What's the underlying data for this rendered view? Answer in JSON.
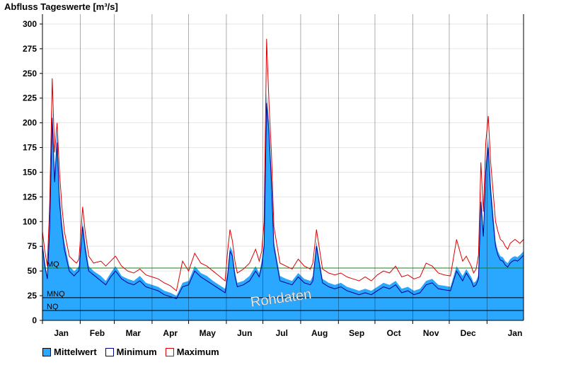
{
  "chart_data": {
    "type": "area",
    "title": "Abfluss Tageswerte [m³/s]",
    "ylim": [
      0,
      310
    ],
    "yticks": [
      0,
      25,
      50,
      75,
      100,
      125,
      150,
      175,
      200,
      225,
      250,
      275,
      300
    ],
    "xlim": [
      0,
      395
    ],
    "month_labels": [
      "Jan",
      "Feb",
      "Mar",
      "Apr",
      "May",
      "Jun",
      "Jul",
      "Aug",
      "Sep",
      "Oct",
      "Nov",
      "Dec",
      "Jan"
    ],
    "month_starts": [
      0,
      31,
      59,
      90,
      120,
      151,
      181,
      212,
      243,
      273,
      304,
      334,
      365
    ],
    "reference_lines": [
      {
        "label": "MQ",
        "value": 53
      },
      {
        "label": "MNQ",
        "value": 23
      },
      {
        "label": "NQ",
        "value": 10
      }
    ],
    "watermark": "Rohdaten",
    "x_key_days": [
      0,
      2,
      4,
      6,
      8,
      10,
      12,
      14,
      16,
      18,
      22,
      26,
      28,
      30,
      33,
      35,
      38,
      42,
      48,
      52,
      56,
      60,
      65,
      70,
      75,
      80,
      85,
      90,
      95,
      100,
      105,
      110,
      115,
      120,
      125,
      130,
      135,
      140,
      145,
      150,
      152,
      154,
      156,
      158,
      160,
      165,
      170,
      175,
      178,
      180,
      182,
      184,
      186,
      188,
      190,
      195,
      200,
      205,
      210,
      215,
      220,
      222,
      225,
      230,
      235,
      240,
      245,
      250,
      255,
      260,
      265,
      270,
      275,
      280,
      285,
      290,
      295,
      300,
      305,
      310,
      315,
      320,
      325,
      330,
      335,
      340,
      345,
      348,
      350,
      352,
      354,
      356,
      358,
      360,
      362,
      364,
      366,
      368,
      370,
      372,
      374,
      376,
      378,
      380,
      382,
      384,
      386,
      388,
      390,
      392,
      395
    ],
    "series": [
      {
        "name": "Mittelwert",
        "color": "#2aa7ff",
        "values": [
          80,
          60,
          45,
          100,
          215,
          150,
          190,
          130,
          100,
          80,
          55,
          50,
          52,
          55,
          100,
          80,
          55,
          50,
          45,
          40,
          48,
          55,
          45,
          42,
          40,
          45,
          38,
          36,
          34,
          30,
          28,
          25,
          38,
          40,
          55,
          48,
          45,
          40,
          36,
          32,
          50,
          75,
          70,
          50,
          38,
          40,
          45,
          55,
          48,
          60,
          80,
          230,
          200,
          150,
          80,
          45,
          42,
          40,
          48,
          42,
          40,
          45,
          80,
          42,
          38,
          36,
          38,
          34,
          32,
          30,
          32,
          30,
          34,
          38,
          36,
          40,
          32,
          34,
          30,
          32,
          40,
          42,
          36,
          35,
          34,
          55,
          45,
          52,
          48,
          44,
          38,
          40,
          46,
          130,
          90,
          160,
          185,
          140,
          110,
          80,
          70,
          65,
          64,
          60,
          58,
          62,
          64,
          65,
          64,
          66,
          70
        ]
      },
      {
        "name": "Minimum",
        "color": "#00008b",
        "values": [
          75,
          55,
          42,
          95,
          205,
          140,
          180,
          120,
          92,
          72,
          50,
          45,
          48,
          50,
          95,
          72,
          50,
          46,
          40,
          36,
          44,
          50,
          42,
          38,
          36,
          40,
          34,
          32,
          30,
          26,
          24,
          22,
          34,
          36,
          50,
          44,
          40,
          36,
          32,
          28,
          45,
          70,
          65,
          45,
          34,
          36,
          40,
          50,
          44,
          55,
          75,
          220,
          190,
          140,
          75,
          40,
          38,
          36,
          44,
          38,
          36,
          40,
          75,
          38,
          34,
          32,
          34,
          30,
          28,
          26,
          28,
          26,
          30,
          34,
          32,
          36,
          28,
          30,
          26,
          28,
          36,
          38,
          32,
          31,
          30,
          50,
          40,
          48,
          44,
          40,
          34,
          36,
          42,
          120,
          85,
          150,
          175,
          130,
          100,
          75,
          66,
          61,
          60,
          56,
          54,
          58,
          60,
          61,
          60,
          62,
          66
        ]
      },
      {
        "name": "Maximum",
        "color": "#dd0000",
        "values": [
          90,
          70,
          55,
          120,
          245,
          170,
          200,
          150,
          115,
          90,
          65,
          60,
          58,
          62,
          115,
          90,
          65,
          58,
          60,
          55,
          60,
          65,
          55,
          50,
          48,
          52,
          46,
          44,
          42,
          38,
          35,
          30,
          60,
          50,
          68,
          58,
          55,
          50,
          45,
          40,
          70,
          92,
          80,
          60,
          48,
          52,
          58,
          72,
          60,
          70,
          100,
          285,
          220,
          170,
          95,
          58,
          55,
          52,
          62,
          55,
          52,
          58,
          92,
          52,
          48,
          46,
          48,
          44,
          42,
          40,
          44,
          40,
          46,
          50,
          48,
          55,
          44,
          46,
          42,
          44,
          58,
          55,
          48,
          46,
          45,
          82,
          60,
          65,
          60,
          55,
          48,
          52,
          66,
          160,
          110,
          180,
          207,
          160,
          130,
          100,
          90,
          82,
          80,
          75,
          72,
          78,
          80,
          82,
          80,
          78,
          82
        ]
      }
    ],
    "legend_position": "bottom-left"
  }
}
